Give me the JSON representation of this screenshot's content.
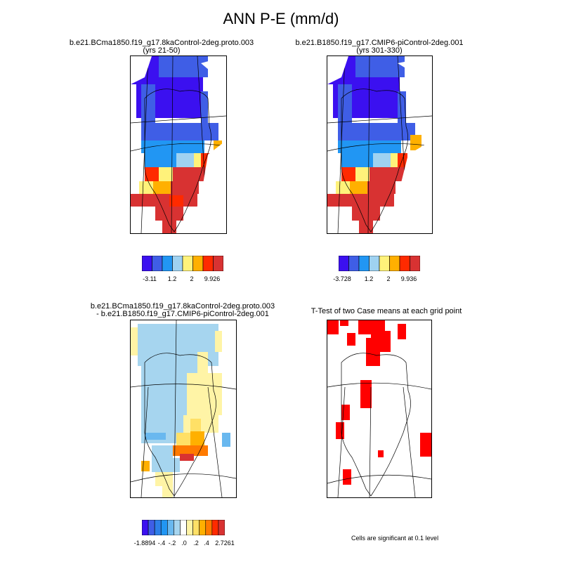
{
  "title": "ANN P-E (mm/d)",
  "panels": [
    {
      "id": "case1",
      "title_line1": "b.e21.BCma1850.f19_g17.8kaControl-2deg.proto.003",
      "title_line2": "(yrs 21-50)"
    },
    {
      "id": "case2",
      "title_line1": "b.e21.B1850.f19_g17.CMIP6-piControl-2deg.001",
      "title_line2": "(yrs 301-330)"
    },
    {
      "id": "diff",
      "title_line1": "b.e21.BCma1850.f19_g17.8kaControl-2deg.proto.003",
      "title_line2": "- b.e21.B1850.f19_g17.CMIP6-piControl-2deg.001"
    },
    {
      "id": "ttest",
      "title_line1": "T-Test of two Case means at each grid point",
      "title_line2": ""
    }
  ],
  "colorbars": {
    "case1": {
      "colors": [
        "#3b10f0",
        "#3f5ee6",
        "#2196f3",
        "#9fd2f1",
        "#fff27a",
        "#ffb000",
        "#ff2a00",
        "#d83232"
      ],
      "labels": [
        "-3.11",
        "1.2",
        "2",
        "9.926"
      ]
    },
    "case2": {
      "colors": [
        "#3b10f0",
        "#3f5ee6",
        "#2196f3",
        "#9fd2f1",
        "#fff27a",
        "#ffb000",
        "#ff2a00",
        "#d83232"
      ],
      "labels": [
        "-3.728",
        "1.2",
        "2",
        "9.936"
      ]
    },
    "diff": {
      "colors": [
        "#3b10f0",
        "#3f5ee6",
        "#2d7fe8",
        "#2196f3",
        "#69b8ef",
        "#a6d5ef",
        "#ffffff",
        "#fff4a6",
        "#ffe066",
        "#ffb000",
        "#ff7a00",
        "#ff2a00",
        "#d83232"
      ],
      "labels": [
        "-1.8894",
        "-.4",
        "-.2",
        ".0",
        ".2",
        ".4",
        "2.7261"
      ]
    }
  },
  "ttest_note": "Cells are significant at 0.1 level",
  "chart_data": [
    {
      "type": "heatmap",
      "title": "b.e21.BCma1850.f19_g17.8kaControl-2deg.proto.003 (yrs 21-50)",
      "units": "mm/d",
      "region": "Greenland",
      "colorbar_range": [
        -3.11,
        9.926
      ]
    },
    {
      "type": "heatmap",
      "title": "b.e21.B1850.f19_g17.CMIP6-piControl-2deg.001 (yrs 301-330)",
      "units": "mm/d",
      "region": "Greenland",
      "colorbar_range": [
        -3.728,
        9.936
      ]
    },
    {
      "type": "heatmap",
      "title": "difference",
      "units": "mm/d",
      "region": "Greenland",
      "colorbar_range": [
        -1.8894,
        2.7261
      ]
    },
    {
      "type": "heatmap",
      "title": "T-Test of two Case means at each grid point",
      "significance_level": 0.1
    }
  ]
}
